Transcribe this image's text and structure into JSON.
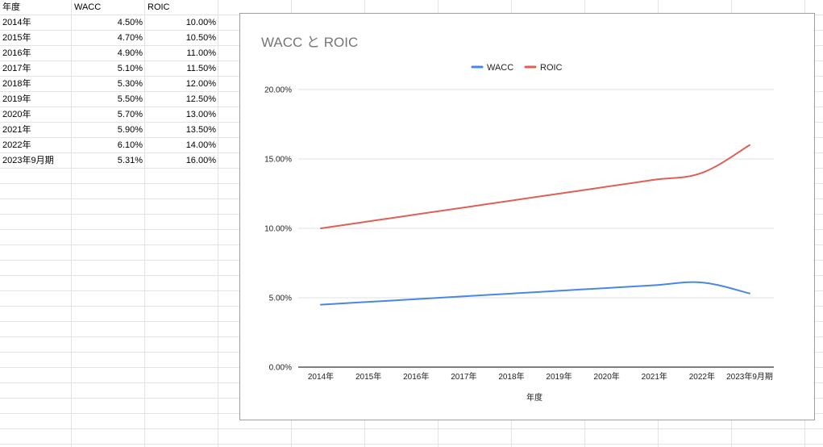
{
  "sheet": {
    "headers": [
      "年度",
      "WACC",
      "ROIC"
    ],
    "rows": [
      {
        "year": "2014年",
        "wacc": "4.50%",
        "roic": "10.00%"
      },
      {
        "year": "2015年",
        "wacc": "4.70%",
        "roic": "10.50%"
      },
      {
        "year": "2016年",
        "wacc": "4.90%",
        "roic": "11.00%"
      },
      {
        "year": "2017年",
        "wacc": "5.10%",
        "roic": "11.50%"
      },
      {
        "year": "2018年",
        "wacc": "5.30%",
        "roic": "12.00%"
      },
      {
        "year": "2019年",
        "wacc": "5.50%",
        "roic": "12.50%"
      },
      {
        "year": "2020年",
        "wacc": "5.70%",
        "roic": "13.00%"
      },
      {
        "year": "2021年",
        "wacc": "5.90%",
        "roic": "13.50%"
      },
      {
        "year": "2022年",
        "wacc": "6.10%",
        "roic": "14.00%"
      },
      {
        "year": "2023年9月期",
        "wacc": "5.31%",
        "roic": "16.00%"
      }
    ]
  },
  "chart_data": {
    "type": "line",
    "title": "WACC と ROIC",
    "xlabel": "年度",
    "ylabel": "",
    "categories": [
      "2014年",
      "2015年",
      "2016年",
      "2017年",
      "2018年",
      "2019年",
      "2020年",
      "2021年",
      "2022年",
      "2023年9月期"
    ],
    "series": [
      {
        "name": "WACC",
        "color": "#4a86e8",
        "values": [
          4.5,
          4.7,
          4.9,
          5.1,
          5.3,
          5.5,
          5.7,
          5.9,
          6.1,
          5.31
        ]
      },
      {
        "name": "ROIC",
        "color": "#e06055",
        "values": [
          10.0,
          10.5,
          11.0,
          11.5,
          12.0,
          12.5,
          13.0,
          13.5,
          14.0,
          16.0
        ]
      }
    ],
    "ylim": [
      0,
      20
    ],
    "yticks": [
      "0.00%",
      "5.00%",
      "10.00%",
      "15.00%",
      "20.00%"
    ],
    "ytick_values": [
      0,
      5,
      10,
      15,
      20
    ],
    "legend": "top-center",
    "grid": true,
    "smooth": true
  }
}
